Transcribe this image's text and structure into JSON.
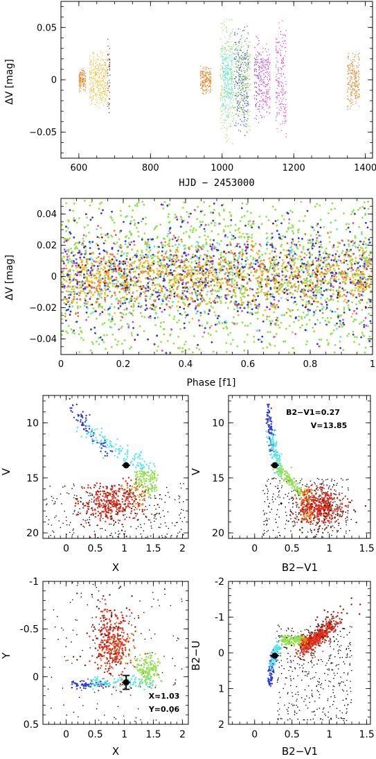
{
  "colors": {
    "orange": "#e8821e",
    "gold": "#f2c02a",
    "darkred": "#7a1a0a",
    "green": "#8fe04a",
    "cyan": "#4ee6f2",
    "blue": "#2a3ad6",
    "purple": "#a030d8",
    "magenta": "#e040d0",
    "red": "#e02818",
    "black": "#000000"
  },
  "chart_data": [
    {
      "id": "lightcurve",
      "type": "scatter",
      "xlabel": "HJD − 2453000",
      "ylabel": "ΔV [mag]",
      "xlim": [
        550,
        1420
      ],
      "ylim": [
        0.075,
        -0.075
      ],
      "xticks": [
        600,
        800,
        1000,
        1200,
        1400
      ],
      "yticks": [
        -0.05,
        0,
        0.05
      ],
      "ytick_labels": [
        "−0.05",
        "0",
        "0.05"
      ],
      "segments": [
        {
          "x0": 630,
          "x1": 680,
          "amp": 0.03,
          "color": "gold"
        },
        {
          "x0": 600,
          "x1": 620,
          "amp": 0.012,
          "color": "orange"
        },
        {
          "x0": 681,
          "x1": 688,
          "amp": 0.04,
          "color": "darkred"
        },
        {
          "x0": 940,
          "x1": 970,
          "amp": 0.015,
          "color": "orange"
        },
        {
          "x0": 995,
          "x1": 1035,
          "amp": 0.065,
          "color": "green"
        },
        {
          "x0": 1000,
          "x1": 1030,
          "amp": 0.04,
          "color": "cyan"
        },
        {
          "x0": 1035,
          "x1": 1075,
          "amp": 0.055,
          "color": "blue"
        },
        {
          "x0": 1040,
          "x1": 1080,
          "amp": 0.05,
          "color": "green"
        },
        {
          "x0": 1090,
          "x1": 1110,
          "amp": 0.045,
          "color": "purple"
        },
        {
          "x0": 1110,
          "x1": 1135,
          "amp": 0.04,
          "color": "magenta"
        },
        {
          "x0": 1150,
          "x1": 1180,
          "amp": 0.06,
          "color": "magenta"
        },
        {
          "x0": 1350,
          "x1": 1385,
          "amp": 0.03,
          "color": "orange"
        }
      ]
    },
    {
      "id": "phased",
      "type": "scatter",
      "xlabel": "Phase [f1]",
      "ylabel": "ΔV [mag]",
      "xlim": [
        0,
        1
      ],
      "ylim": [
        0.05,
        -0.05
      ],
      "xticks": [
        0,
        0.2,
        0.4,
        0.6,
        0.8,
        1
      ],
      "yticks": [
        -0.04,
        -0.02,
        0,
        0.02,
        0.04
      ],
      "ytick_labels": [
        "−0.04",
        "−0.02",
        "0",
        "0.02",
        "0.04"
      ]
    },
    {
      "id": "cmd-vx",
      "type": "scatter",
      "xlabel": "X",
      "ylabel": "V",
      "xlim": [
        -0.4,
        2.1
      ],
      "ylim": [
        7.5,
        20.5
      ],
      "xticks": [
        0,
        0.5,
        1,
        1.5,
        2
      ],
      "yticks": [
        10,
        15,
        20
      ],
      "star": {
        "x": 1.03,
        "y": 13.85
      }
    },
    {
      "id": "cmd-vbv",
      "type": "scatter",
      "xlabel": "B2−V1",
      "ylabel": "V",
      "xlim": [
        -0.35,
        1.55
      ],
      "ylim": [
        7.5,
        20.5
      ],
      "xticks": [
        0,
        0.5,
        1,
        1.5
      ],
      "yticks": [
        10,
        15,
        20
      ],
      "star": {
        "x": 0.27,
        "y": 13.85
      },
      "annotation": [
        "B2−V1=0.27",
        "V=13.85"
      ]
    },
    {
      "id": "ccd-yx",
      "type": "scatter",
      "xlabel": "X",
      "ylabel": "Y",
      "xlim": [
        -0.4,
        2.1
      ],
      "ylim": [
        -1,
        0.5
      ],
      "xticks": [
        0,
        0.5,
        1,
        1.5,
        2
      ],
      "yticks": [
        -1,
        -0.5,
        0,
        0.5
      ],
      "star": {
        "x": 1.03,
        "y": 0.06
      },
      "annotation": [
        "X=1.03",
        "Y=0.06"
      ]
    },
    {
      "id": "ccd-ubv",
      "type": "scatter",
      "xlabel": "B2−V1",
      "ylabel": "B2−U",
      "xlim": [
        -0.35,
        1.55
      ],
      "ylim": [
        -2,
        2
      ],
      "xticks": [
        0,
        0.5,
        1,
        1.5
      ],
      "yticks": [
        -2,
        -1,
        0,
        1,
        2
      ],
      "star": {
        "x": 0.27,
        "y": 0.08
      }
    }
  ]
}
